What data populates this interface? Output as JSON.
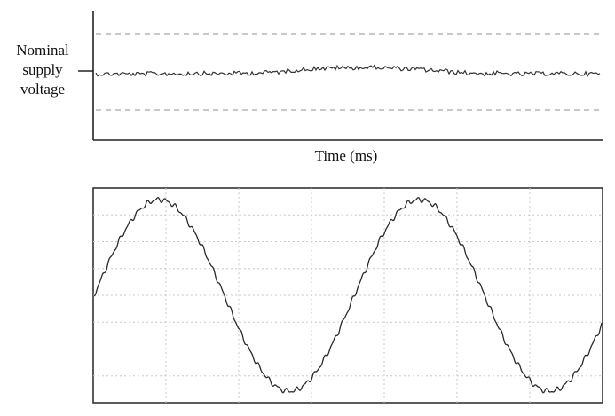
{
  "top_panel": {
    "y_label_lines": [
      "Nominal",
      "supply",
      "voltage"
    ],
    "x_axis_label": "Time (ms)",
    "nominal_level": 0,
    "upper_limit_level": 1,
    "lower_limit_level": -1,
    "colors": {
      "trace": "#333333",
      "limit_lines": "#a8a8a8",
      "axes": "#222222"
    }
  },
  "bottom_panel": {
    "cycles_shown": 2,
    "starts_at_phase": "zero-crossing rising",
    "grid": true,
    "colors": {
      "trace": "#2a2a2a",
      "grid": "#c8c8c8",
      "frame": "#333333"
    }
  }
}
